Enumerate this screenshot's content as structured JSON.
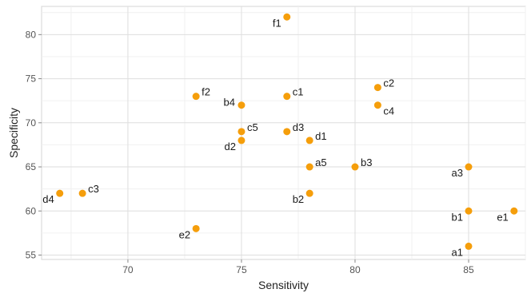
{
  "chart_data": {
    "type": "scatter",
    "title": "",
    "xlabel": "Sensitivity",
    "ylabel": "Specificity",
    "xlim": [
      66.2,
      87.5
    ],
    "ylim": [
      54.5,
      83.2
    ],
    "x_ticks": [
      70,
      75,
      80,
      85
    ],
    "y_ticks": [
      55,
      60,
      65,
      70,
      75,
      80
    ],
    "x_tick_labels": [
      "70",
      "75",
      "80",
      "85"
    ],
    "y_tick_labels": [
      "55",
      "60",
      "65",
      "70",
      "75",
      "80"
    ],
    "grid": true,
    "legend": "none",
    "point_color": "#f59e0b",
    "points": [
      {
        "label": "f1",
        "x": 77,
        "y": 82,
        "label_pos": "left-below"
      },
      {
        "label": "c2",
        "x": 81,
        "y": 74,
        "label_pos": "right-above"
      },
      {
        "label": "f2",
        "x": 73,
        "y": 73,
        "label_pos": "right-above"
      },
      {
        "label": "c1",
        "x": 77,
        "y": 73,
        "label_pos": "right-above"
      },
      {
        "label": "b4",
        "x": 75,
        "y": 72,
        "label_pos": "left"
      },
      {
        "label": "c4",
        "x": 81,
        "y": 72,
        "label_pos": "right-below"
      },
      {
        "label": "c5",
        "x": 75,
        "y": 69,
        "label_pos": "right-above"
      },
      {
        "label": "d3",
        "x": 77,
        "y": 69,
        "label_pos": "right-above"
      },
      {
        "label": "d2",
        "x": 75,
        "y": 68,
        "label_pos": "left-below"
      },
      {
        "label": "d1",
        "x": 78,
        "y": 68,
        "label_pos": "right-above"
      },
      {
        "label": "a5",
        "x": 78,
        "y": 65,
        "label_pos": "right-above"
      },
      {
        "label": "b3",
        "x": 80,
        "y": 65,
        "label_pos": "right-above"
      },
      {
        "label": "a3",
        "x": 85,
        "y": 65,
        "label_pos": "left-below"
      },
      {
        "label": "c3",
        "x": 68,
        "y": 62,
        "label_pos": "right-above"
      },
      {
        "label": "d4",
        "x": 67,
        "y": 62,
        "label_pos": "left-below"
      },
      {
        "label": "b2",
        "x": 78,
        "y": 62,
        "label_pos": "left-below"
      },
      {
        "label": "b1",
        "x": 85,
        "y": 60,
        "label_pos": "left-below"
      },
      {
        "label": "e1",
        "x": 87,
        "y": 60,
        "label_pos": "left-below"
      },
      {
        "label": "e2",
        "x": 73,
        "y": 58,
        "label_pos": "left-below"
      },
      {
        "label": "a1",
        "x": 85,
        "y": 56,
        "label_pos": "left-below"
      }
    ]
  }
}
